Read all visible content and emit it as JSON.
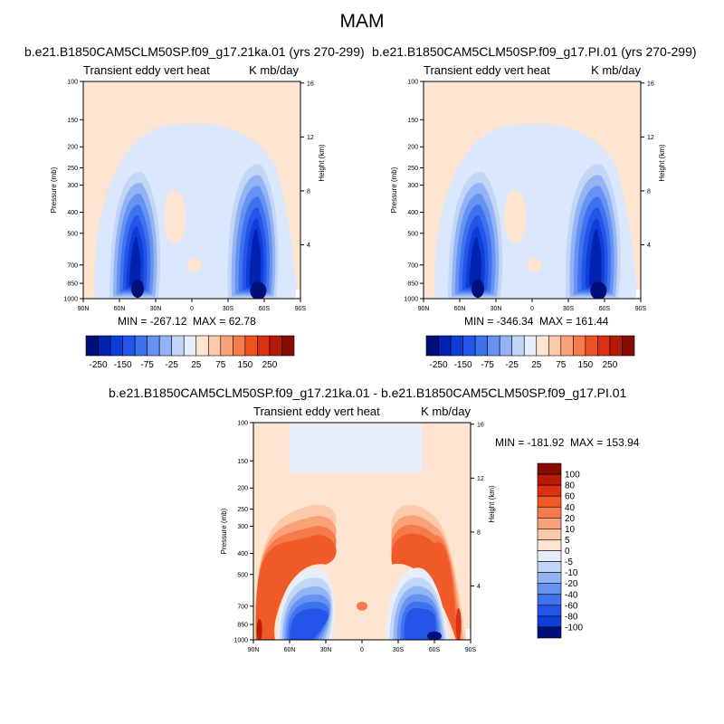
{
  "title": "MAM",
  "colors": {
    "ocean_fill": "#ffffff",
    "neutral_pos": "#fde4d0",
    "neutral_neg": "#dae6fb"
  },
  "chart_data": [
    {
      "type": "heatmap",
      "case": "b.e21.B1850CAM5CLM50SP.f09_g17.21ka.01 (yrs 270-299)",
      "left_label": "Transient eddy vert heat",
      "right_label": "K mb/day",
      "ylabel": "Pressure (mb)",
      "ylabel_right": "Height (km)",
      "x_ticks": [
        "90N",
        "60N",
        "30N",
        "0",
        "30S",
        "60S",
        "90S"
      ],
      "y_ticks": [
        "100",
        "150",
        "200",
        "250",
        "300",
        "400",
        "500",
        "700",
        "850",
        "1000"
      ],
      "y_ticks_right": [
        "16",
        "12",
        "8",
        "4"
      ],
      "min_text": "MIN = -267.12",
      "max_text": "MAX =  62.78",
      "colorbar_labels": [
        "-250",
        "-150",
        "-75",
        "-25",
        "25",
        "75",
        "150",
        "250"
      ],
      "colorbar_colors": [
        "#001078",
        "#0022b0",
        "#0d3ed8",
        "#2455e8",
        "#3f72ef",
        "#6693f2",
        "#93b4f4",
        "#c4d6f8",
        "#e6eefb",
        "#fde4d0",
        "#fcc9aa",
        "#f9a27a",
        "#f67b4c",
        "#ee5122",
        "#dc3012",
        "#b81a08",
        "#860c00"
      ],
      "ylim": [
        1000,
        100
      ],
      "xlim": [
        "90N",
        "90S"
      ]
    },
    {
      "type": "heatmap",
      "case": "b.e21.B1850CAM5CLM50SP.f09_g17.PI.01 (yrs 270-299)",
      "left_label": "Transient eddy vert heat",
      "right_label": "K mb/day",
      "ylabel": "Pressure (mb)",
      "ylabel_right": "Height (km)",
      "x_ticks": [
        "90N",
        "60N",
        "30N",
        "0",
        "30S",
        "60S",
        "90S"
      ],
      "y_ticks": [
        "100",
        "150",
        "200",
        "250",
        "300",
        "400",
        "500",
        "700",
        "850",
        "1000"
      ],
      "y_ticks_right": [
        "16",
        "12",
        "8",
        "4"
      ],
      "min_text": "MIN = -346.34",
      "max_text": "MAX = 161.44",
      "colorbar_labels": [
        "-250",
        "-150",
        "-75",
        "-25",
        "25",
        "75",
        "150",
        "250"
      ],
      "colorbar_colors": [
        "#001078",
        "#0022b0",
        "#0d3ed8",
        "#2455e8",
        "#3f72ef",
        "#6693f2",
        "#93b4f4",
        "#c4d6f8",
        "#e6eefb",
        "#fde4d0",
        "#fcc9aa",
        "#f9a27a",
        "#f67b4c",
        "#ee5122",
        "#dc3012",
        "#b81a08",
        "#860c00"
      ],
      "ylim": [
        1000,
        100
      ],
      "xlim": [
        "90N",
        "90S"
      ]
    },
    {
      "type": "heatmap",
      "case": "b.e21.B1850CAM5CLM50SP.f09_g17.21ka.01 - b.e21.B1850CAM5CLM50SP.f09_g17.PI.01",
      "left_label": "Transient eddy vert heat",
      "right_label": "K mb/day",
      "ylabel": "Pressure (mb)",
      "ylabel_right": "Height (km)",
      "x_ticks": [
        "90N",
        "60N",
        "30N",
        "0",
        "30S",
        "60S",
        "90S"
      ],
      "y_ticks": [
        "100",
        "150",
        "200",
        "250",
        "300",
        "400",
        "500",
        "700",
        "850",
        "1000"
      ],
      "y_ticks_right": [
        "16",
        "12",
        "8",
        "4"
      ],
      "min_text": "MIN = -181.92",
      "max_text": "MAX = 153.94",
      "colorbar_labels": [
        "100",
        "80",
        "60",
        "40",
        "20",
        "10",
        "5",
        "0",
        "-5",
        "-10",
        "-20",
        "-40",
        "-60",
        "-80",
        "-100"
      ],
      "colorbar_colors": [
        "#860c00",
        "#b81a08",
        "#dc3012",
        "#f05a28",
        "#f67b4c",
        "#f9a27a",
        "#fcc9aa",
        "#fde4d0",
        "#e6eefb",
        "#c4d6f8",
        "#93b4f4",
        "#6693f2",
        "#3f72ef",
        "#2455e8",
        "#0d3ed8",
        "#001078"
      ],
      "ylim": [
        1000,
        100
      ],
      "xlim": [
        "90N",
        "90S"
      ]
    }
  ]
}
